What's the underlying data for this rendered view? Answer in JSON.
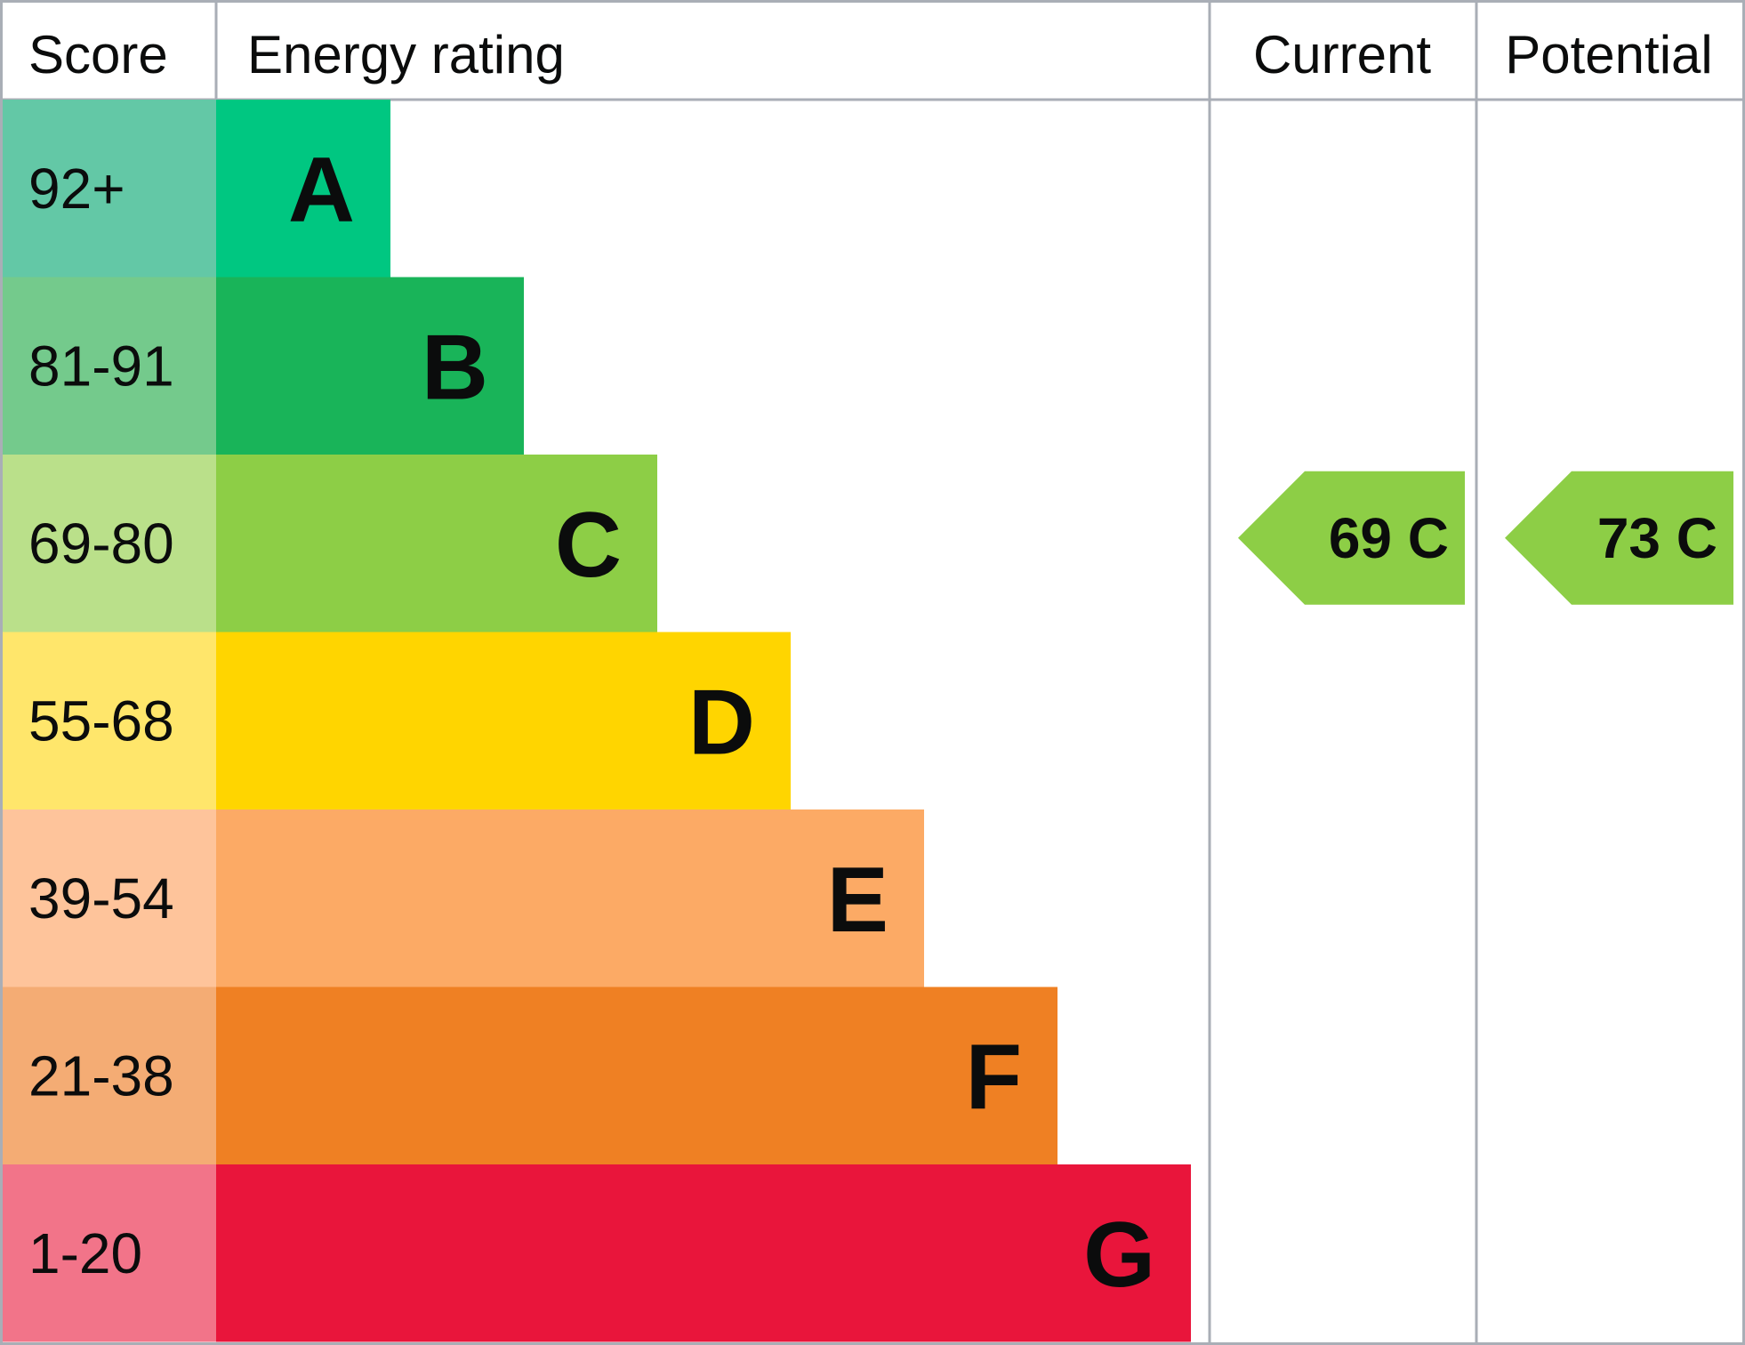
{
  "headers": {
    "score": "Score",
    "energy_rating": "Energy rating",
    "current": "Current",
    "potential": "Potential"
  },
  "chart_data": {
    "type": "bar",
    "categories": [
      "A",
      "B",
      "C",
      "D",
      "E",
      "F",
      "G"
    ],
    "score_ranges": [
      "92+",
      "81-91",
      "69-80",
      "55-68",
      "39-54",
      "21-38",
      "1-20"
    ],
    "band_colors": [
      "#00c781",
      "#19b459",
      "#8dce46",
      "#ffd500",
      "#fcaa65",
      "#ef8023",
      "#e9153b"
    ],
    "score_cell_colors": [
      "#63c8a6",
      "#74ca8c",
      "#bae08a",
      "#ffe66b",
      "#fec49b",
      "#f4ac74",
      "#f27489"
    ],
    "values": [
      1,
      2,
      3,
      4,
      5,
      6,
      7
    ],
    "current": {
      "label": "69 C",
      "score": 69,
      "band": "C",
      "color": "#8dce46"
    },
    "potential": {
      "label": "73 C",
      "score": 73,
      "band": "C",
      "color": "#8dce46"
    }
  }
}
